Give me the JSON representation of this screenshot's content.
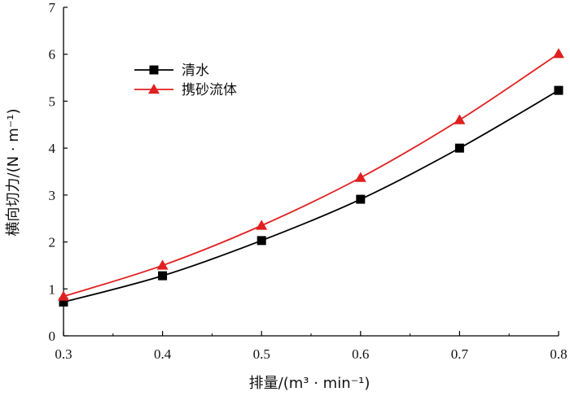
{
  "chart_data": {
    "type": "line",
    "xlabel": "排量/(m³ · min⁻¹)",
    "ylabel": "横向切力/(N · m⁻¹)",
    "xlim": [
      0.3,
      0.8
    ],
    "ylim": [
      0,
      7
    ],
    "x_ticks": [
      "0.3",
      "0.4",
      "0.5",
      "0.6",
      "0.7",
      "0.8"
    ],
    "y_ticks": [
      "0",
      "1",
      "2",
      "3",
      "4",
      "5",
      "6",
      "7"
    ],
    "x": [
      0.3,
      0.4,
      0.5,
      0.6,
      0.7,
      0.8
    ],
    "series": [
      {
        "name": "清水",
        "values": [
          0.72,
          1.28,
          2.03,
          2.91,
          4.0,
          5.23
        ],
        "color": "#000000",
        "marker": "square"
      },
      {
        "name": "携砂流体",
        "values": [
          0.84,
          1.5,
          2.35,
          3.37,
          4.6,
          6.01
        ],
        "color": "#e02020",
        "marker": "triangle"
      }
    ],
    "legend_position": "top-left",
    "grid": false
  }
}
